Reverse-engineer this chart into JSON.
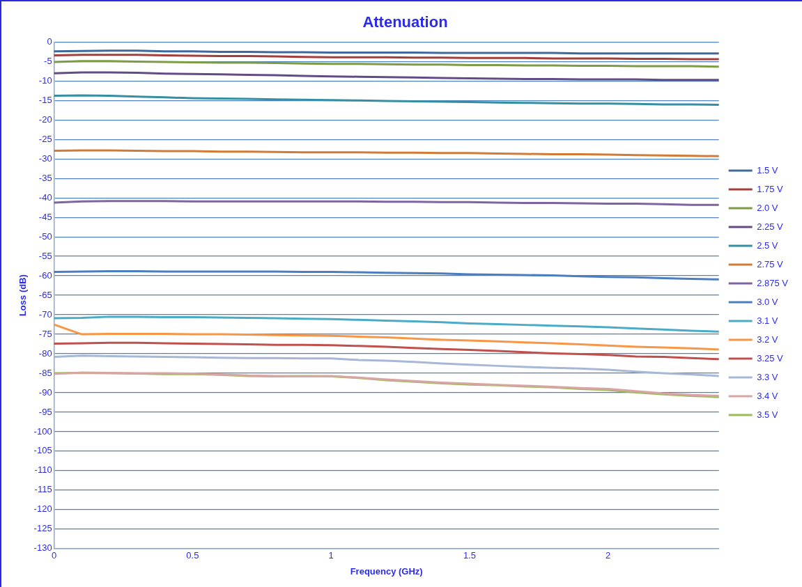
{
  "chart_data": {
    "type": "line",
    "title": "Attenuation",
    "xlabel": "Frequency (GHz)",
    "ylabel": "Loss (dB)",
    "x": [
      0,
      0.1,
      0.2,
      0.3,
      0.4,
      0.5,
      0.6,
      0.7,
      0.8,
      0.9,
      1.0,
      1.1,
      1.2,
      1.3,
      1.4,
      1.5,
      1.6,
      1.7,
      1.8,
      1.9,
      2.0,
      2.1,
      2.2,
      2.3,
      2.4
    ],
    "xlim": [
      0,
      2.4
    ],
    "xticks": [
      0,
      0.5,
      1,
      1.5,
      2
    ],
    "ylim": [
      -130,
      0
    ],
    "yticks": [
      0,
      -5,
      -10,
      -15,
      -20,
      -25,
      -30,
      -35,
      -40,
      -45,
      -50,
      -55,
      -60,
      -65,
      -70,
      -75,
      -80,
      -85,
      -90,
      -95,
      -100,
      -105,
      -110,
      -115,
      -120,
      -125,
      -130
    ],
    "grid": "y",
    "legend": "right",
    "marker": "none",
    "line_style": "solid",
    "series": [
      {
        "name": "1.5 V",
        "color": "#3f689c",
        "values": [
          -2.4,
          -2.3,
          -2.2,
          -2.2,
          -2.4,
          -2.4,
          -2.5,
          -2.5,
          -2.6,
          -2.6,
          -2.7,
          -2.7,
          -2.7,
          -2.7,
          -2.8,
          -2.8,
          -2.8,
          -2.8,
          -2.8,
          -2.9,
          -2.9,
          -2.9,
          -2.9,
          -2.9,
          -2.9
        ]
      },
      {
        "name": "1.75 V",
        "color": "#a33e3b",
        "values": [
          -3.4,
          -3.3,
          -3.3,
          -3.3,
          -3.4,
          -3.5,
          -3.6,
          -3.6,
          -3.7,
          -3.8,
          -3.9,
          -3.9,
          -3.9,
          -4.0,
          -4.0,
          -4.1,
          -4.1,
          -4.1,
          -4.2,
          -4.2,
          -4.2,
          -4.3,
          -4.3,
          -4.4,
          -4.4
        ]
      },
      {
        "name": "2.0 V",
        "color": "#7e9c45",
        "values": [
          -5.1,
          -4.9,
          -4.9,
          -5.0,
          -5.1,
          -5.2,
          -5.3,
          -5.3,
          -5.4,
          -5.5,
          -5.6,
          -5.6,
          -5.7,
          -5.8,
          -5.8,
          -5.9,
          -5.9,
          -6.0,
          -6.0,
          -6.1,
          -6.1,
          -6.2,
          -6.2,
          -6.2,
          -6.3
        ]
      },
      {
        "name": "2.25 V",
        "color": "#634c85",
        "values": [
          -8.0,
          -7.8,
          -7.8,
          -7.9,
          -8.1,
          -8.2,
          -8.3,
          -8.4,
          -8.5,
          -8.7,
          -8.8,
          -8.9,
          -9.0,
          -9.1,
          -9.2,
          -9.3,
          -9.4,
          -9.5,
          -9.5,
          -9.6,
          -9.6,
          -9.6,
          -9.7,
          -9.7,
          -9.7
        ]
      },
      {
        "name": "2.5 V",
        "color": "#368ea2",
        "values": [
          -13.8,
          -13.7,
          -13.8,
          -14.0,
          -14.2,
          -14.4,
          -14.5,
          -14.6,
          -14.7,
          -14.8,
          -14.9,
          -15.0,
          -15.1,
          -15.2,
          -15.3,
          -15.4,
          -15.5,
          -15.6,
          -15.7,
          -15.8,
          -15.8,
          -15.9,
          -16.0,
          -16.0,
          -16.1
        ]
      },
      {
        "name": "2.75 V",
        "color": "#d07b37",
        "values": [
          -27.9,
          -27.8,
          -27.8,
          -27.9,
          -28.0,
          -28.0,
          -28.1,
          -28.1,
          -28.2,
          -28.3,
          -28.3,
          -28.3,
          -28.4,
          -28.4,
          -28.5,
          -28.5,
          -28.6,
          -28.7,
          -28.8,
          -28.8,
          -28.9,
          -29.0,
          -29.1,
          -29.2,
          -29.3
        ]
      },
      {
        "name": "2.875 V",
        "color": "#7d64a1",
        "values": [
          -41.2,
          -40.9,
          -40.8,
          -40.8,
          -40.8,
          -40.9,
          -40.9,
          -40.9,
          -40.9,
          -40.9,
          -40.9,
          -40.9,
          -41.0,
          -41.0,
          -41.1,
          -41.1,
          -41.2,
          -41.3,
          -41.3,
          -41.4,
          -41.5,
          -41.5,
          -41.6,
          -41.8,
          -41.8
        ]
      },
      {
        "name": "3.0 V",
        "color": "#4a7ebf",
        "values": [
          -59.0,
          -58.9,
          -58.8,
          -58.8,
          -58.9,
          -58.9,
          -58.9,
          -58.9,
          -58.9,
          -59.0,
          -59.0,
          -59.1,
          -59.2,
          -59.3,
          -59.4,
          -59.6,
          -59.7,
          -59.8,
          -59.9,
          -60.1,
          -60.3,
          -60.4,
          -60.6,
          -60.8,
          -60.9
        ]
      },
      {
        "name": "3.1 V",
        "color": "#4aabc6",
        "values": [
          -70.9,
          -70.8,
          -70.5,
          -70.5,
          -70.6,
          -70.6,
          -70.7,
          -70.8,
          -70.9,
          -71.0,
          -71.1,
          -71.3,
          -71.5,
          -71.7,
          -71.9,
          -72.2,
          -72.4,
          -72.6,
          -72.8,
          -73.0,
          -73.2,
          -73.5,
          -73.8,
          -74.1,
          -74.3
        ]
      },
      {
        "name": "3.2 V",
        "color": "#f79646",
        "values": [
          -72.5,
          -75.0,
          -74.9,
          -74.9,
          -74.9,
          -75.0,
          -75.0,
          -75.1,
          -75.2,
          -75.3,
          -75.4,
          -75.6,
          -75.8,
          -76.1,
          -76.4,
          -76.6,
          -76.8,
          -77.1,
          -77.3,
          -77.6,
          -77.9,
          -78.2,
          -78.4,
          -78.6,
          -78.9
        ]
      },
      {
        "name": "3.25 V",
        "color": "#c0504d",
        "values": [
          -77.4,
          -77.3,
          -77.2,
          -77.2,
          -77.3,
          -77.4,
          -77.5,
          -77.6,
          -77.7,
          -77.7,
          -77.8,
          -78.0,
          -78.2,
          -78.5,
          -78.8,
          -79.0,
          -79.3,
          -79.6,
          -79.9,
          -80.1,
          -80.3,
          -80.7,
          -80.8,
          -81.1,
          -81.4
        ]
      },
      {
        "name": "3.3 V",
        "color": "#a6b8d6",
        "values": [
          -80.8,
          -80.5,
          -80.6,
          -80.7,
          -80.8,
          -80.9,
          -81.0,
          -81.1,
          -81.1,
          -81.2,
          -81.2,
          -81.6,
          -81.8,
          -82.1,
          -82.5,
          -82.8,
          -83.1,
          -83.4,
          -83.6,
          -83.8,
          -84.1,
          -84.6,
          -85.0,
          -85.3,
          -85.7
        ]
      },
      {
        "name": "3.4 V",
        "color": "#d9a5a4",
        "values": [
          -85.2,
          -84.8,
          -84.9,
          -85.0,
          -85.0,
          -85.1,
          -85.3,
          -85.6,
          -85.7,
          -85.8,
          -85.7,
          -86.1,
          -86.6,
          -87.0,
          -87.4,
          -87.7,
          -88.0,
          -88.2,
          -88.5,
          -88.8,
          -89.0,
          -89.6,
          -90.2,
          -90.6,
          -90.8
        ]
      },
      {
        "name": "3.5 V",
        "color": "#9bbb59",
        "values": [
          -85.0,
          -84.9,
          -85.0,
          -85.1,
          -85.2,
          -85.2,
          -85.4,
          -85.7,
          -85.8,
          -85.7,
          -85.8,
          -86.2,
          -86.8,
          -87.2,
          -87.6,
          -87.9,
          -88.1,
          -88.4,
          -88.6,
          -89.0,
          -89.3,
          -89.9,
          -90.4,
          -90.8,
          -91.1
        ]
      }
    ]
  }
}
